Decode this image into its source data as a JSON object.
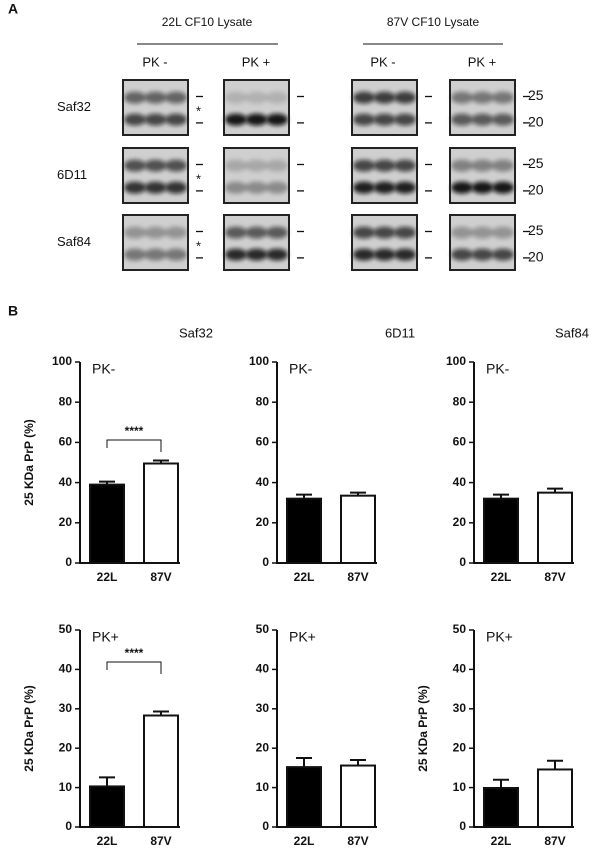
{
  "blot": {
    "panel_label": "A",
    "groups": [
      {
        "title": "22L CF10 Lysate"
      },
      {
        "title": "87V CF10 Lysate"
      }
    ],
    "pk_labels": [
      "PK -",
      "PK +"
    ],
    "rows": [
      {
        "label": "Saf32",
        "asterisk": "*"
      },
      {
        "label": "6D11",
        "asterisk": "*"
      },
      {
        "label": "Saf84",
        "asterisk": "*"
      }
    ],
    "markers": [
      "25",
      "20"
    ]
  },
  "panel_b_label": "B",
  "chart_data": [
    {
      "type": "bar",
      "title": "Saf32",
      "label": "PK-",
      "ylabel": "25 KDa PrP (%)",
      "categories": [
        "22L",
        "87V"
      ],
      "values": [
        39,
        49.5
      ],
      "errors": [
        1.5,
        1.5
      ],
      "colors": [
        "#000000",
        "#ffffff"
      ],
      "ylim": [
        0,
        100
      ],
      "yticks": [
        0,
        20,
        40,
        60,
        80,
        100
      ],
      "significance": "****"
    },
    {
      "type": "bar",
      "title": "6D11",
      "label": "PK-",
      "categories": [
        "22L",
        "87V"
      ],
      "values": [
        32,
        33.5
      ],
      "errors": [
        2,
        1.5
      ],
      "colors": [
        "#000000",
        "#ffffff"
      ],
      "ylim": [
        0,
        100
      ],
      "yticks": [
        0,
        20,
        40,
        60,
        80,
        100
      ]
    },
    {
      "type": "bar",
      "title": "Saf84",
      "label": "PK-",
      "categories": [
        "22L",
        "87V"
      ],
      "values": [
        32,
        35
      ],
      "errors": [
        2,
        2
      ],
      "colors": [
        "#000000",
        "#ffffff"
      ],
      "ylim": [
        0,
        100
      ],
      "yticks": [
        0,
        20,
        40,
        60,
        80,
        100
      ]
    },
    {
      "type": "bar",
      "label": "PK+",
      "ylabel": "25 KDa PrP (%)",
      "categories": [
        "22L",
        "87V"
      ],
      "values": [
        10.3,
        28.3
      ],
      "errors": [
        2.3,
        1
      ],
      "colors": [
        "#000000",
        "#ffffff"
      ],
      "ylim": [
        0,
        50
      ],
      "yticks": [
        0,
        10,
        20,
        30,
        40,
        50
      ],
      "significance": "****"
    },
    {
      "type": "bar",
      "label": "PK+",
      "categories": [
        "22L",
        "87V"
      ],
      "values": [
        15.2,
        15.6
      ],
      "errors": [
        2.3,
        1.4
      ],
      "colors": [
        "#000000",
        "#ffffff"
      ],
      "ylim": [
        0,
        50
      ],
      "yticks": [
        0,
        10,
        20,
        30,
        40,
        50
      ]
    },
    {
      "type": "bar",
      "label": "PK+",
      "ylabel": "25 KDa PrP (%)",
      "categories": [
        "22L",
        "87V"
      ],
      "values": [
        9.9,
        14.6
      ],
      "errors": [
        2.1,
        2.2
      ],
      "colors": [
        "#000000",
        "#ffffff"
      ],
      "ylim": [
        0,
        50
      ],
      "yticks": [
        0,
        10,
        20,
        30,
        40,
        50
      ]
    }
  ]
}
